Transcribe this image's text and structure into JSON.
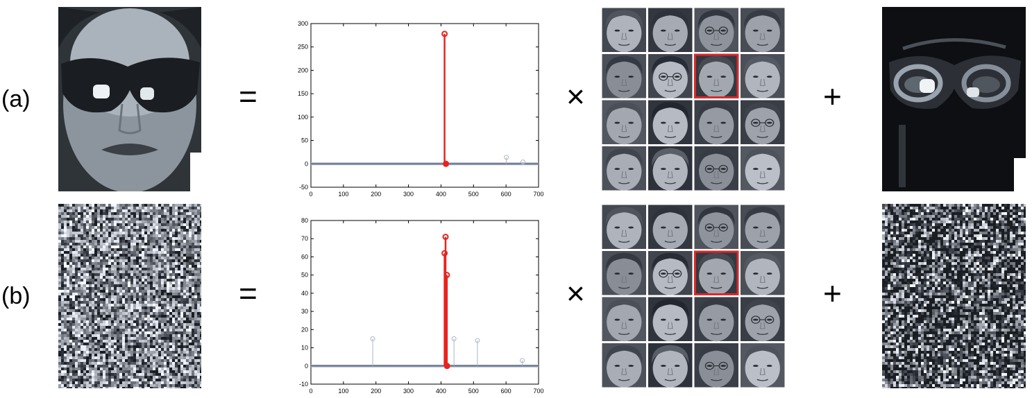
{
  "rows": [
    {
      "label": "(a)",
      "operators": {
        "equals": "=",
        "times": "×",
        "plus": "+"
      },
      "test_image": "occluded-face-sunglasses",
      "error_image": "sunglasses-error",
      "chart_data": {
        "type": "stem",
        "x_range": [
          0,
          700
        ],
        "y_range": [
          -50,
          300
        ],
        "xticks": [
          0,
          100,
          200,
          300,
          400,
          500,
          600,
          700
        ],
        "yticks": [
          -50,
          0,
          50,
          100,
          150,
          200,
          250,
          300
        ],
        "highlight_color": "#e8231e",
        "other_color": "#a9b6c8",
        "highlighted_stems": [
          {
            "x": 411,
            "y": 278
          }
        ],
        "minor_stems": [
          {
            "x": 601,
            "y": 14
          },
          {
            "x": 652,
            "y": 4
          }
        ]
      }
    },
    {
      "label": "(b)",
      "operators": {
        "equals": "=",
        "times": "×",
        "plus": "+"
      },
      "test_image": "corrupted-face-noise",
      "error_image": "noise-error",
      "chart_data": {
        "type": "stem",
        "x_range": [
          0,
          700
        ],
        "y_range": [
          -10,
          80
        ],
        "xticks": [
          0,
          100,
          200,
          300,
          400,
          500,
          600,
          700
        ],
        "yticks": [
          -10,
          0,
          10,
          20,
          30,
          40,
          50,
          60,
          70,
          80
        ],
        "highlight_color": "#e8231e",
        "other_color": "#a9b6c8",
        "highlighted_stems": [
          {
            "x": 411,
            "y": 62
          },
          {
            "x": 414,
            "y": 71
          },
          {
            "x": 418,
            "y": 50
          }
        ],
        "minor_stems": [
          {
            "x": 190,
            "y": 15
          },
          {
            "x": 440,
            "y": 15
          },
          {
            "x": 512,
            "y": 14
          },
          {
            "x": 650,
            "y": 3
          }
        ]
      }
    }
  ],
  "dictionary": {
    "rows": 4,
    "cols": 4,
    "highlight_index": 6,
    "highlight_color": "#d82a2a"
  }
}
